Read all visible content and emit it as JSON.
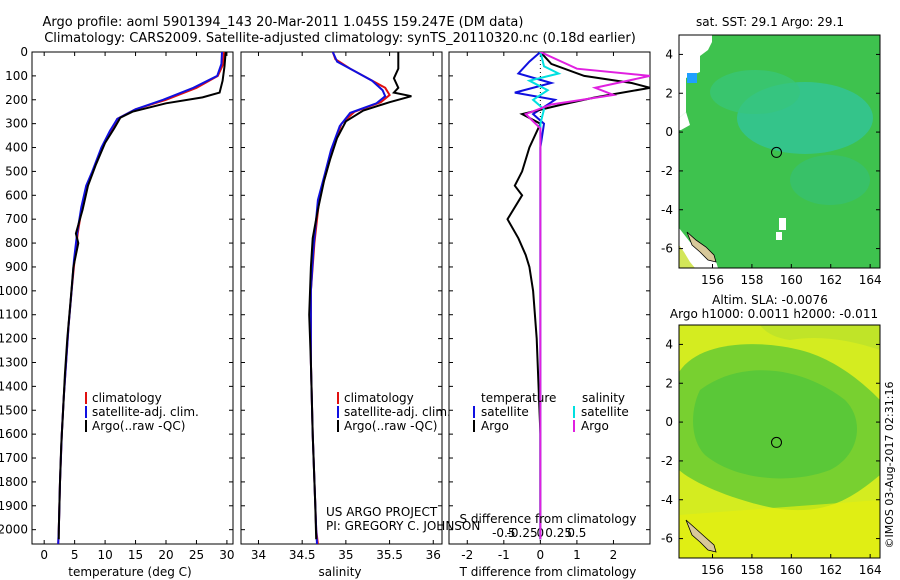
{
  "title_line1": "Argo profile: aoml 5901394_143 20-Mar-2011 1.045S 159.247E (DM data)",
  "title_line2": "Climatology: CARS2009. Satellite-adjusted climatology: synTS_20110320.nc (0.18d earlier)",
  "colors": {
    "climatology": "#e01010",
    "satellite": "#1010e0",
    "argo": "#000000",
    "sal_satellite": "#00e0e0",
    "sal_argo": "#e020e0",
    "sst_green": "#3ec24e",
    "sla_yellow": "#d4ec20"
  },
  "depth_axis": {
    "ticks": [
      0,
      100,
      200,
      300,
      400,
      500,
      600,
      700,
      800,
      900,
      1000,
      1100,
      1200,
      1300,
      1400,
      1500,
      1600,
      1700,
      1800,
      1900,
      2000
    ],
    "labels": [
      "0",
      "100",
      "200",
      "300",
      "400",
      "500",
      "600",
      "700",
      "800",
      "900",
      "1000",
      "1100",
      "1200",
      "1300",
      "1400",
      "1500",
      "1600",
      "1700",
      "1800",
      "1900",
      "2000"
    ],
    "max": 2060
  },
  "chart_data": [
    {
      "type": "line",
      "id": "temperature",
      "xlabel": "temperature (deg C)",
      "xlim": [
        -2,
        31
      ],
      "xticks": [
        0,
        5,
        10,
        15,
        20,
        25,
        30
      ],
      "xticklabels": [
        "0",
        "5",
        "10",
        "15",
        "20",
        "25",
        "30"
      ],
      "ylabel": "depth",
      "legend": [
        "climatology",
        "satellite-adj. clim.",
        "Argo(..raw -QC)"
      ],
      "series": [
        {
          "name": "climatology",
          "color": "#e01010",
          "points": [
            [
              29.5,
              0
            ],
            [
              29.4,
              50
            ],
            [
              28.5,
              100
            ],
            [
              25,
              150
            ],
            [
              20,
              200
            ],
            [
              15,
              240
            ],
            [
              12,
              280
            ],
            [
              11,
              330
            ],
            [
              9.5,
              400
            ],
            [
              8,
              500
            ],
            [
              7,
              560
            ],
            [
              6.2,
              650
            ],
            [
              5.5,
              760
            ],
            [
              5,
              870
            ],
            [
              4.5,
              1000
            ],
            [
              4,
              1150
            ],
            [
              3.6,
              1300
            ],
            [
              3.2,
              1450
            ],
            [
              2.9,
              1600
            ],
            [
              2.6,
              1800
            ],
            [
              2.4,
              2000
            ],
            [
              2.3,
              2060
            ]
          ]
        },
        {
          "name": "satellite-adj. clim.",
          "color": "#1010e0",
          "points": [
            [
              29.2,
              0
            ],
            [
              29.1,
              50
            ],
            [
              28.4,
              100
            ],
            [
              24.5,
              150
            ],
            [
              19.5,
              200
            ],
            [
              15,
              240
            ],
            [
              12,
              280
            ],
            [
              10.8,
              330
            ],
            [
              9.4,
              400
            ],
            [
              7.9,
              500
            ],
            [
              6.9,
              560
            ],
            [
              6.1,
              650
            ],
            [
              5.4,
              760
            ],
            [
              4.9,
              870
            ],
            [
              4.5,
              1000
            ],
            [
              4,
              1150
            ],
            [
              3.6,
              1300
            ],
            [
              3.2,
              1450
            ],
            [
              2.9,
              1600
            ],
            [
              2.6,
              1800
            ],
            [
              2.4,
              2000
            ],
            [
              2.3,
              2060
            ]
          ]
        },
        {
          "name": "Argo(..raw -QC)",
          "color": "#000000",
          "points": [
            [
              29.8,
              0
            ],
            [
              29.6,
              60
            ],
            [
              29.3,
              120
            ],
            [
              28.8,
              170
            ],
            [
              26,
              190
            ],
            [
              20,
              215
            ],
            [
              14.5,
              250
            ],
            [
              12.5,
              275
            ],
            [
              11.5,
              320
            ],
            [
              10,
              380
            ],
            [
              8.5,
              470
            ],
            [
              7.2,
              560
            ],
            [
              6.3,
              660
            ],
            [
              5.2,
              760
            ],
            [
              5.6,
              800
            ],
            [
              4.8,
              900
            ],
            [
              4.3,
              1050
            ],
            [
              3.8,
              1200
            ],
            [
              3.4,
              1350
            ],
            [
              3.1,
              1500
            ],
            [
              2.8,
              1650
            ],
            [
              2.6,
              1800
            ],
            [
              2.4,
              2000
            ],
            [
              2.4,
              2040
            ]
          ]
        }
      ]
    },
    {
      "type": "line",
      "id": "salinity",
      "xlabel": "salinity",
      "xlim": [
        33.8,
        36.1
      ],
      "xticks": [
        34,
        34.5,
        35,
        35.5,
        36
      ],
      "xticklabels": [
        "34",
        "34.5",
        "35",
        "35.5",
        "36"
      ],
      "legend": [
        "climatology",
        "satellite-adj. clim.",
        "Argo(..raw -QC)"
      ],
      "series": [
        {
          "name": "climatology",
          "color": "#e01010",
          "points": [
            [
              34.85,
              0
            ],
            [
              34.88,
              30
            ],
            [
              35.05,
              70
            ],
            [
              35.25,
              110
            ],
            [
              35.45,
              150
            ],
            [
              35.5,
              180
            ],
            [
              35.4,
              210
            ],
            [
              35.1,
              250
            ],
            [
              34.95,
              300
            ],
            [
              34.85,
              400
            ],
            [
              34.78,
              500
            ],
            [
              34.7,
              600
            ],
            [
              34.64,
              800
            ],
            [
              34.6,
              1000
            ],
            [
              34.6,
              1300
            ],
            [
              34.62,
              1600
            ],
            [
              34.66,
              2000
            ],
            [
              34.68,
              2060
            ]
          ]
        },
        {
          "name": "satellite-adj. clim.",
          "color": "#1010e0",
          "points": [
            [
              34.85,
              0
            ],
            [
              34.9,
              40
            ],
            [
              35.1,
              80
            ],
            [
              35.3,
              120
            ],
            [
              35.42,
              160
            ],
            [
              35.45,
              185
            ],
            [
              35.35,
              215
            ],
            [
              35.05,
              255
            ],
            [
              34.93,
              310
            ],
            [
              34.83,
              410
            ],
            [
              34.76,
              510
            ],
            [
              34.68,
              620
            ],
            [
              34.63,
              820
            ],
            [
              34.6,
              1000
            ],
            [
              34.6,
              1300
            ],
            [
              34.62,
              1600
            ],
            [
              34.66,
              2000
            ],
            [
              34.67,
              2060
            ]
          ]
        },
        {
          "name": "Argo(..raw -QC)",
          "color": "#000000",
          "points": [
            [
              35.6,
              0
            ],
            [
              35.6,
              70
            ],
            [
              35.55,
              110
            ],
            [
              35.6,
              150
            ],
            [
              35.55,
              170
            ],
            [
              35.75,
              185
            ],
            [
              35.5,
              210
            ],
            [
              35.2,
              245
            ],
            [
              35,
              290
            ],
            [
              34.9,
              360
            ],
            [
              34.82,
              450
            ],
            [
              34.75,
              540
            ],
            [
              34.68,
              660
            ],
            [
              34.62,
              780
            ],
            [
              34.6,
              900
            ],
            [
              34.58,
              1100
            ],
            [
              34.6,
              1300
            ],
            [
              34.62,
              1600
            ],
            [
              34.65,
              1900
            ],
            [
              34.66,
              2040
            ]
          ]
        }
      ]
    },
    {
      "type": "line",
      "id": "difference",
      "xlabel": "T difference from climatology",
      "xlabel_top": "S difference from climatology",
      "xlim": [
        -2.5,
        3.0
      ],
      "xticks": [
        -2,
        -1,
        0,
        1,
        2
      ],
      "xticklabels": [
        "-2",
        "-1",
        "0",
        "1",
        "2"
      ],
      "sticks": [
        -0.5,
        -0.25,
        0,
        0.25,
        0.5
      ],
      "sticklabels": [
        "-0.5",
        "-0.25",
        "0",
        "0.25",
        "0.5"
      ],
      "legend_headers": [
        "temperature",
        "salinity"
      ],
      "legend": [
        "satellite",
        "Argo",
        "satellite",
        "Argo"
      ],
      "series": [
        {
          "name": "temperature satellite",
          "color": "#1010e0",
          "points": [
            [
              0,
              0
            ],
            [
              -0.3,
              40
            ],
            [
              -0.6,
              90
            ],
            [
              0.3,
              130
            ],
            [
              -0.7,
              170
            ],
            [
              0.4,
              200
            ],
            [
              -0.2,
              260
            ],
            [
              0.1,
              300
            ],
            [
              0,
              400
            ],
            [
              0,
              600
            ],
            [
              0,
              1000
            ],
            [
              0,
              1500
            ],
            [
              0,
              2040
            ]
          ]
        },
        {
          "name": "temperature Argo",
          "color": "#000000",
          "points": [
            [
              0,
              0
            ],
            [
              0.3,
              50
            ],
            [
              1.2,
              100
            ],
            [
              2.5,
              130
            ],
            [
              3,
              150
            ],
            [
              1.5,
              190
            ],
            [
              0.6,
              220
            ],
            [
              -0.5,
              260
            ],
            [
              0,
              300
            ],
            [
              -0.3,
              400
            ],
            [
              -0.5,
              500
            ],
            [
              -0.7,
              560
            ],
            [
              -0.5,
              600
            ],
            [
              -0.9,
              700
            ],
            [
              -0.6,
              780
            ],
            [
              -0.4,
              850
            ],
            [
              -0.3,
              900
            ],
            [
              -0.2,
              1000
            ],
            [
              -0.1,
              1200
            ],
            [
              0,
              1600
            ],
            [
              0,
              2040
            ]
          ]
        },
        {
          "name": "salinity satellite",
          "color": "#00e0e0",
          "points": [
            [
              0,
              0
            ],
            [
              0.1,
              60
            ],
            [
              0.5,
              90
            ],
            [
              -0.3,
              120
            ],
            [
              0.2,
              160
            ],
            [
              -0.2,
              200
            ],
            [
              0.1,
              240
            ],
            [
              0,
              300
            ],
            [
              0,
              600
            ],
            [
              0,
              1000
            ],
            [
              0,
              1500
            ],
            [
              0,
              2040
            ]
          ]
        },
        {
          "name": "salinity Argo",
          "color": "#e020e0",
          "points": [
            [
              0,
              0
            ],
            [
              1,
              70
            ],
            [
              3,
              100
            ],
            [
              1.5,
              150
            ],
            [
              2,
              180
            ],
            [
              0.3,
              220
            ],
            [
              -0.4,
              260
            ],
            [
              0,
              320
            ],
            [
              0,
              600
            ],
            [
              0,
              1000
            ],
            [
              0,
              1500
            ],
            [
              0,
              2040
            ]
          ]
        }
      ]
    },
    {
      "type": "heatmap",
      "id": "sst_map",
      "title": "sat. SST: 29.1 Argo: 29.1",
      "xlim": [
        154.3,
        164.5
      ],
      "ylim": [
        -7,
        5
      ],
      "xticks": [
        156,
        158,
        160,
        162,
        164
      ],
      "xticklabels": [
        "156",
        "158",
        "160",
        "162",
        "164"
      ],
      "yticks": [
        4,
        2,
        0,
        -2,
        -4,
        -6
      ],
      "yticklabels": [
        "4",
        "2",
        "0",
        "-2",
        "-4",
        "-6"
      ],
      "marker": [
        159.247,
        -1.045
      ]
    },
    {
      "type": "heatmap",
      "id": "sla_map",
      "title_line1": "Altim. SLA: -0.0076",
      "title_line2": "Argo h1000: 0.0011 h2000: -0.011",
      "xlim": [
        154.3,
        164.5
      ],
      "ylim": [
        -7,
        5
      ],
      "xticks": [
        156,
        158,
        160,
        162,
        164
      ],
      "xticklabels": [
        "156",
        "158",
        "160",
        "162",
        "164"
      ],
      "yticks": [
        4,
        2,
        0,
        -2,
        -4,
        -6
      ],
      "yticklabels": [
        "4",
        "2",
        "0",
        "-2",
        "-4",
        "-6"
      ],
      "marker": [
        159.247,
        -1.045
      ]
    }
  ],
  "footer": {
    "project": "US ARGO PROJECT",
    "pi": "PI: GREGORY C. JOHNSON"
  },
  "credit": "©IMOS 03-Aug-2017 02:31:16"
}
